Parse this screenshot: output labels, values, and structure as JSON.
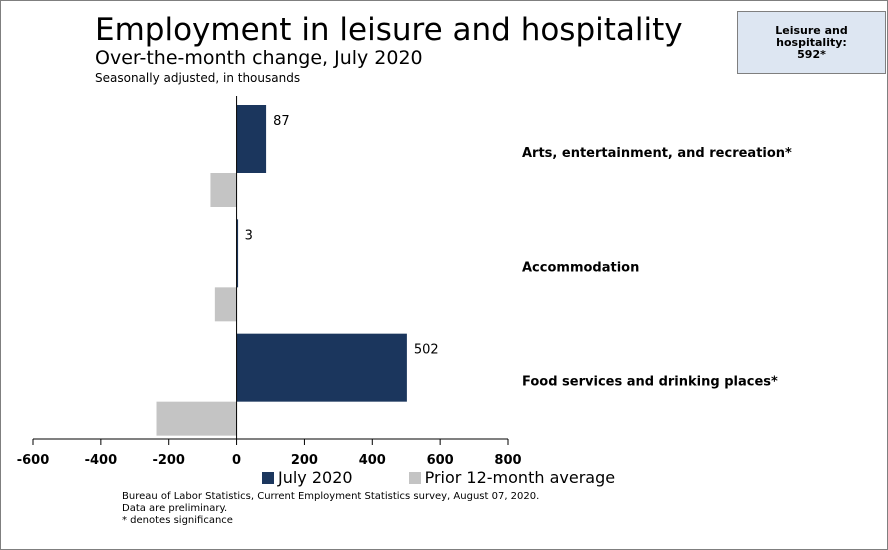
{
  "title": "Employment in leisure and hospitality",
  "subtitle": "Over-the-month change, July 2020",
  "subsubtitle": "Seasonally adjusted, in thousands",
  "callout": {
    "line1": "Leisure and hospitality:",
    "line2": "592*"
  },
  "colors": {
    "july": "#1b365d",
    "prior": "#c4c4c4"
  },
  "chart_data": {
    "type": "bar",
    "orientation": "horizontal",
    "categories": [
      "Arts, entertainment, and recreation*",
      "Accommodation",
      "Food services and drinking places*"
    ],
    "series": [
      {
        "name": "July 2020",
        "values": [
          87,
          3,
          502
        ],
        "data_labels": [
          "87",
          "3",
          "502"
        ]
      },
      {
        "name": "Prior 12-month average",
        "values": [
          -77,
          -64,
          -236
        ]
      }
    ],
    "xlim": [
      -600,
      800
    ],
    "xticks": [
      -600,
      -400,
      -200,
      0,
      200,
      400,
      600,
      800
    ],
    "xtick_labels": [
      "-600",
      "-400",
      "-200",
      "0",
      "200",
      "400",
      "600",
      "800"
    ],
    "grid": false,
    "legend_position": "bottom"
  },
  "legend": {
    "july_label": "July 2020",
    "prior_label": "Prior 12-month average"
  },
  "footnotes": {
    "source": "Bureau of Labor Statistics, Current Employment Statistics survey, August 07, 2020.",
    "preliminary": "Data are preliminary.",
    "significance": "* denotes significance"
  }
}
